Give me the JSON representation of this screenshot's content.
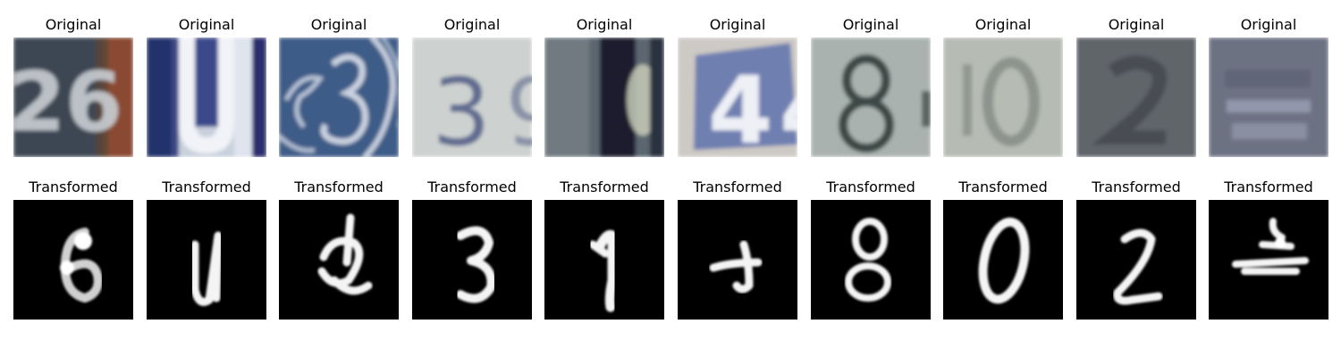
{
  "figure": {
    "rows": [
      {
        "row_id": "original",
        "panels": [
          {
            "title": "Original",
            "depicts": "26"
          },
          {
            "title": "Original",
            "depicts": "U"
          },
          {
            "title": "Original",
            "depicts": "decorative 3"
          },
          {
            "title": "Original",
            "depicts": "3"
          },
          {
            "title": "Original",
            "depicts": "blurred dark vertical stroke"
          },
          {
            "title": "Original",
            "depicts": "4"
          },
          {
            "title": "Original",
            "depicts": "8"
          },
          {
            "title": "Original",
            "depicts": "0"
          },
          {
            "title": "Original",
            "depicts": "blurred 2"
          },
          {
            "title": "Original",
            "depicts": "blurred horizontal strokes"
          }
        ]
      },
      {
        "row_id": "transformed",
        "panels": [
          {
            "title": "Transformed",
            "depicts": "6"
          },
          {
            "title": "Transformed",
            "depicts": "U"
          },
          {
            "title": "Transformed",
            "depicts": "4"
          },
          {
            "title": "Transformed",
            "depicts": "3"
          },
          {
            "title": "Transformed",
            "depicts": "1"
          },
          {
            "title": "Transformed",
            "depicts": "4"
          },
          {
            "title": "Transformed",
            "depicts": "8"
          },
          {
            "title": "Transformed",
            "depicts": "0"
          },
          {
            "title": "Transformed",
            "depicts": "2"
          },
          {
            "title": "Transformed",
            "depicts": "horizontal strokes"
          }
        ]
      }
    ]
  },
  "colors": {
    "page_background": "#ffffff",
    "title_text": "#000000",
    "transformed_background": "#000000",
    "transformed_stroke": "#ffffff"
  }
}
